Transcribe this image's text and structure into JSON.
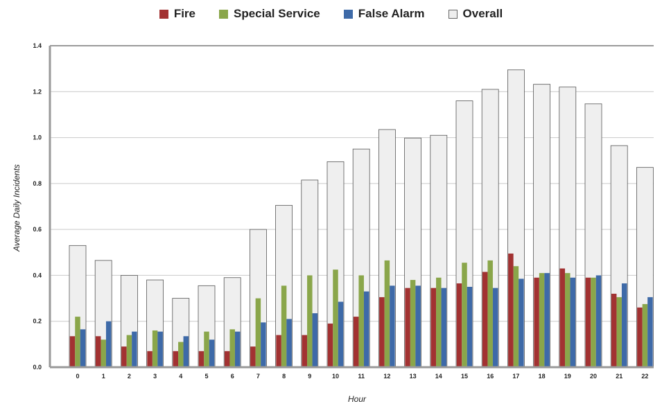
{
  "chart_data": {
    "type": "bar",
    "title": "",
    "xlabel": "Hour",
    "ylabel": "Average Daily Incidents",
    "ylim": [
      0,
      1.4
    ],
    "yticks": [
      "0.0",
      "0.2",
      "0.4",
      "0.6",
      "0.8",
      "1.0",
      "1.2",
      "1.4"
    ],
    "categories": [
      "0",
      "1",
      "2",
      "3",
      "4",
      "5",
      "6",
      "7",
      "8",
      "9",
      "10",
      "11",
      "12",
      "13",
      "14",
      "15",
      "16",
      "17",
      "18",
      "19",
      "20",
      "21",
      "22"
    ],
    "overall": {
      "name": "Overall",
      "color": "#efefef",
      "values": [
        0.53,
        0.465,
        0.4,
        0.38,
        0.3,
        0.355,
        0.39,
        0.6,
        0.705,
        0.815,
        0.895,
        0.95,
        1.035,
        0.998,
        1.01,
        1.16,
        1.21,
        1.295,
        1.232,
        1.22,
        1.147,
        0.965,
        0.87
      ]
    },
    "series": [
      {
        "name": "Fire",
        "color": "#a23232",
        "values": [
          0.135,
          0.135,
          0.09,
          0.07,
          0.07,
          0.07,
          0.07,
          0.09,
          0.14,
          0.14,
          0.19,
          0.22,
          0.305,
          0.345,
          0.345,
          0.365,
          0.415,
          0.495,
          0.39,
          0.43,
          0.39,
          0.32,
          0.26
        ]
      },
      {
        "name": "Special Service",
        "color": "#8aa64a",
        "values": [
          0.22,
          0.12,
          0.14,
          0.16,
          0.11,
          0.155,
          0.165,
          0.3,
          0.355,
          0.4,
          0.425,
          0.4,
          0.465,
          0.38,
          0.39,
          0.455,
          0.465,
          0.44,
          0.41,
          0.41,
          0.39,
          0.305,
          0.275
        ]
      },
      {
        "name": "False Alarm",
        "color": "#3e6aa8",
        "values": [
          0.165,
          0.2,
          0.155,
          0.155,
          0.135,
          0.12,
          0.155,
          0.195,
          0.21,
          0.235,
          0.285,
          0.33,
          0.355,
          0.355,
          0.345,
          0.35,
          0.345,
          0.385,
          0.41,
          0.39,
          0.4,
          0.365,
          0.305
        ]
      }
    ],
    "legend": [
      "Fire",
      "Special Service",
      "False Alarm",
      "Overall"
    ],
    "legend_position": "top-center",
    "grid": true
  }
}
